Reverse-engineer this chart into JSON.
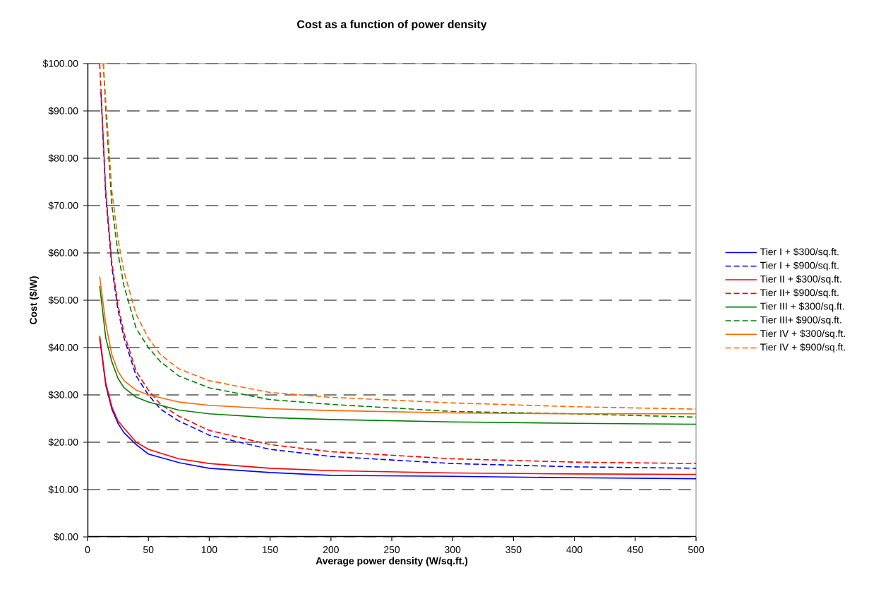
{
  "chart_data": {
    "type": "line",
    "title": "Cost as a function of power density",
    "xlabel": "Average power density (W/sq.ft.)",
    "ylabel": "Cost ($/W)",
    "xlim": [
      0,
      500
    ],
    "xticks": [
      0,
      50,
      100,
      150,
      200,
      250,
      300,
      350,
      400,
      450,
      500
    ],
    "ylim": [
      0,
      100
    ],
    "yticks": [
      {
        "value": 0,
        "label": "$0.00"
      },
      {
        "value": 10,
        "label": "$10.00"
      },
      {
        "value": 20,
        "label": "$20.00"
      },
      {
        "value": 30,
        "label": "$30.00"
      },
      {
        "value": 40,
        "label": "$40.00"
      },
      {
        "value": 50,
        "label": "$50.00"
      },
      {
        "value": 60,
        "label": "$60.00"
      },
      {
        "value": 70,
        "label": "$70.00"
      },
      {
        "value": 80,
        "label": "$80.00"
      },
      {
        "value": 90,
        "label": "$90.00"
      },
      {
        "value": 100,
        "label": "$100.00"
      }
    ],
    "grid": "y",
    "legend": "right",
    "series": [
      {
        "name": "Tier I + $300/sq.ft.",
        "color": "#0000ff",
        "line_style": "solid",
        "x": [
          10,
          15,
          20,
          25,
          30,
          40,
          50,
          75,
          100,
          150,
          200,
          300,
          400,
          500
        ],
        "values": [
          42,
          32,
          27,
          24,
          22,
          19.5,
          17.5,
          15.7,
          14.5,
          13.6,
          13,
          12.8,
          12.5,
          12.3
        ]
      },
      {
        "name": "Tier I + $900/sq.ft.",
        "color": "#0000ff",
        "line_style": "dashed",
        "x": [
          11,
          15,
          20,
          25,
          30,
          40,
          50,
          60,
          75,
          100,
          150,
          200,
          300,
          400,
          500
        ],
        "values": [
          94,
          72,
          57,
          48,
          42,
          34,
          30,
          27,
          24.5,
          21.5,
          18.5,
          17,
          15.5,
          14.8,
          14.5
        ]
      },
      {
        "name": "Tier II + $300/sq.ft.",
        "color": "#ff0000",
        "line_style": "solid",
        "x": [
          10,
          15,
          20,
          25,
          30,
          40,
          50,
          75,
          100,
          150,
          200,
          300,
          400,
          500
        ],
        "values": [
          42.5,
          32.5,
          27.5,
          24.5,
          23,
          20,
          18.5,
          16.5,
          15.5,
          14.5,
          14,
          13.5,
          13.3,
          13.2
        ]
      },
      {
        "name": "Tier II+ $900/sq.ft.",
        "color": "#ff0000",
        "line_style": "dashed",
        "x": [
          10,
          15,
          20,
          25,
          30,
          40,
          50,
          60,
          75,
          100,
          150,
          200,
          300,
          400,
          500
        ],
        "values": [
          100,
          73,
          58,
          49,
          43,
          35,
          31,
          28,
          25.5,
          22.5,
          19.5,
          18,
          16.5,
          15.8,
          15.5
        ]
      },
      {
        "name": "Tier III + $300/sq.ft.",
        "color": "#008000",
        "line_style": "solid",
        "x": [
          10,
          15,
          20,
          25,
          30,
          40,
          50,
          75,
          100,
          150,
          200,
          300,
          400,
          500
        ],
        "values": [
          53,
          42,
          37,
          33.5,
          31.5,
          29.5,
          28.5,
          26.8,
          26,
          25.2,
          24.8,
          24.3,
          24,
          23.8
        ]
      },
      {
        "name": "Tier III+ $900/sq.ft.",
        "color": "#008000",
        "line_style": "dashed",
        "x": [
          13,
          15,
          20,
          25,
          30,
          40,
          50,
          60,
          75,
          100,
          150,
          200,
          300,
          400,
          500
        ],
        "values": [
          100,
          90,
          70,
          60,
          53,
          44,
          40,
          37,
          34,
          31.5,
          29,
          28,
          26.5,
          26,
          25.3
        ]
      },
      {
        "name": "Tier IV + $300/sq.ft.",
        "color": "#ff6600",
        "line_style": "solid",
        "x": [
          10,
          15,
          20,
          25,
          30,
          40,
          50,
          75,
          100,
          150,
          200,
          300,
          400,
          500
        ],
        "values": [
          55,
          45,
          38.5,
          35,
          33,
          31,
          30,
          28.5,
          27.8,
          27.1,
          26.7,
          26.2,
          26,
          26
        ]
      },
      {
        "name": "Tier IV + $900/sq.ft.",
        "color": "#ff6600",
        "line_style": "dashed",
        "x": [
          13,
          15,
          20,
          25,
          30,
          40,
          50,
          60,
          75,
          100,
          150,
          200,
          300,
          400,
          500
        ],
        "values": [
          100,
          92,
          73,
          63,
          56,
          47,
          42,
          38.5,
          35.5,
          33,
          30.5,
          29.5,
          28.3,
          27.5,
          27
        ]
      }
    ]
  }
}
